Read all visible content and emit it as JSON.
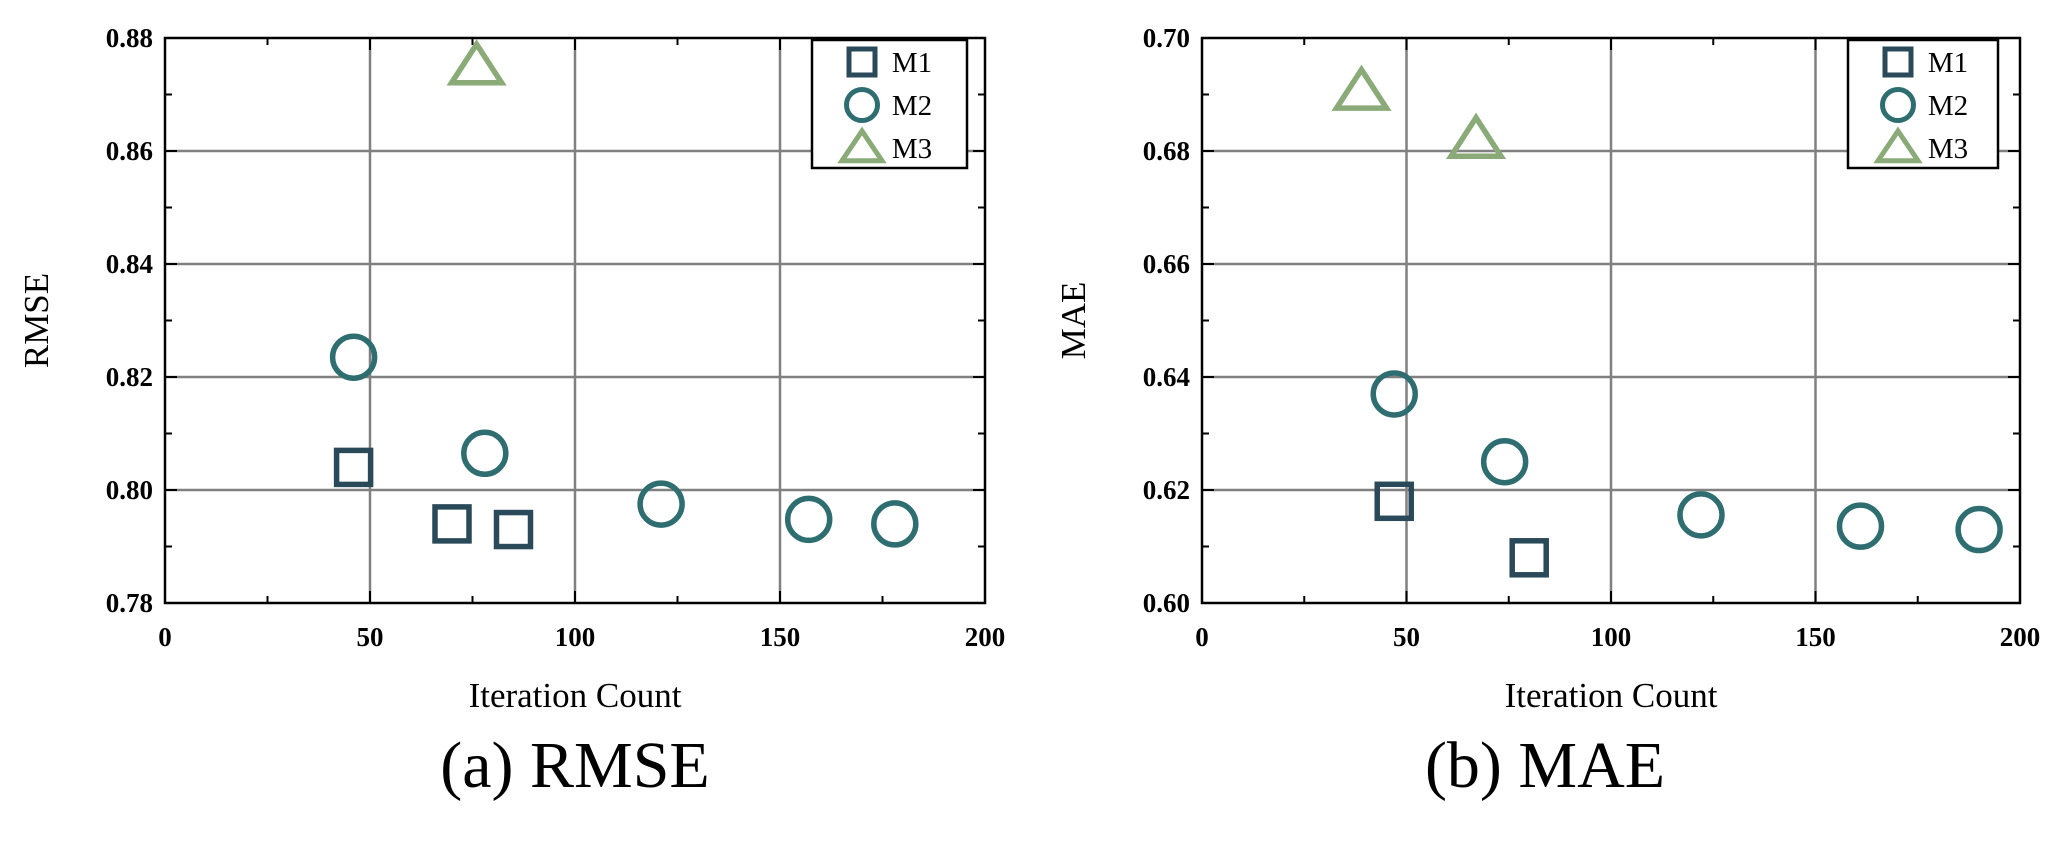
{
  "chart_data": [
    {
      "type": "scatter",
      "caption": "(a) RMSE",
      "xlabel": "Iteration Count",
      "ylabel": "RMSE",
      "xlim": [
        0,
        200
      ],
      "ylim": [
        0.78,
        0.88
      ],
      "x_ticks": [
        "0",
        "50",
        "100",
        "150",
        "200"
      ],
      "y_ticks": [
        "0.78",
        "0.80",
        "0.82",
        "0.84",
        "0.86",
        "0.88"
      ],
      "grid": true,
      "legend_position": "top-right",
      "series": [
        {
          "name": "M1",
          "marker": "square",
          "color": "#2a4a5a",
          "points": [
            [
              46,
              0.804
            ],
            [
              70,
              0.794
            ],
            [
              85,
              0.793
            ]
          ]
        },
        {
          "name": "M2",
          "marker": "circle",
          "color": "#2f6e70",
          "points": [
            [
              46,
              0.8235
            ],
            [
              78,
              0.8065
            ],
            [
              121,
              0.7975
            ],
            [
              157,
              0.7948
            ],
            [
              178,
              0.794
            ]
          ]
        },
        {
          "name": "M3",
          "marker": "triangle",
          "color": "#8aaa78",
          "points": [
            [
              76,
              0.875
            ]
          ]
        }
      ]
    },
    {
      "type": "scatter",
      "caption": "(b) MAE",
      "xlabel": "Iteration Count",
      "ylabel": "MAE",
      "xlim": [
        0,
        200
      ],
      "ylim": [
        0.6,
        0.7
      ],
      "x_ticks": [
        "0",
        "50",
        "100",
        "150",
        "200"
      ],
      "y_ticks": [
        "0.60",
        "0.62",
        "0.64",
        "0.66",
        "0.68",
        "0.70"
      ],
      "grid": true,
      "legend_position": "top-right",
      "series": [
        {
          "name": "M1",
          "marker": "square",
          "color": "#2a4a5a",
          "points": [
            [
              47,
              0.618
            ],
            [
              80,
              0.608
            ]
          ]
        },
        {
          "name": "M2",
          "marker": "circle",
          "color": "#2f6e70",
          "points": [
            [
              47,
              0.637
            ],
            [
              74,
              0.625
            ],
            [
              122,
              0.6156
            ],
            [
              161,
              0.6136
            ],
            [
              190,
              0.613
            ]
          ]
        },
        {
          "name": "M3",
          "marker": "triangle",
          "color": "#8aaa78",
          "points": [
            [
              39,
              0.6905
            ],
            [
              67,
              0.682
            ]
          ]
        }
      ]
    }
  ]
}
